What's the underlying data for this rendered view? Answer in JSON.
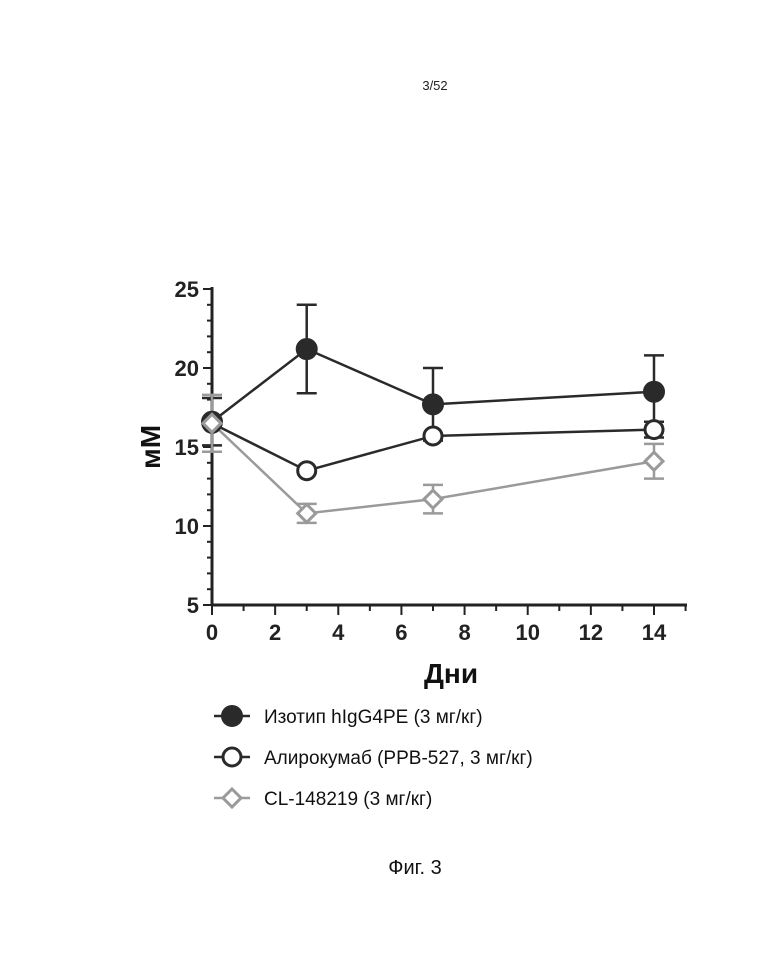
{
  "page": {
    "number": "3/52",
    "caption": "Фиг. 3"
  },
  "chart_data": {
    "type": "line",
    "title": "",
    "xlabel": "Дни",
    "ylabel": "мМ",
    "xlim": [
      0,
      15
    ],
    "ylim": [
      5,
      25
    ],
    "x_ticks": [
      "0",
      "2",
      "4",
      "6",
      "8",
      "10",
      "12",
      "14"
    ],
    "y_ticks": [
      "5",
      "10",
      "15",
      "20",
      "25"
    ],
    "grid": false,
    "legend_position": "bottom",
    "series": [
      {
        "name": "Изотип hIgG4PE (3 мг/кг)",
        "marker": "filled-circle",
        "color": "#2a2a2a",
        "x": [
          0,
          3,
          7,
          14
        ],
        "y": [
          16.6,
          21.2,
          17.7,
          18.5
        ],
        "error": [
          1.5,
          2.8,
          2.3,
          2.3
        ]
      },
      {
        "name": "Алирокумаб (PPB-527, 3 мг/кг)",
        "marker": "open-circle",
        "color": "#2a2a2a",
        "x": [
          0,
          3,
          7,
          14
        ],
        "y": [
          16.5,
          13.5,
          15.7,
          16.1
        ],
        "error": [
          0.0,
          0.0,
          0.0,
          0.5
        ]
      },
      {
        "name": "CL-148219 (3 мг/кг)",
        "marker": "open-diamond",
        "color": "#9a9a9a",
        "x": [
          0,
          3,
          7,
          14
        ],
        "y": [
          16.5,
          10.8,
          11.7,
          14.1
        ],
        "error": [
          1.8,
          0.6,
          0.9,
          1.1
        ]
      }
    ]
  }
}
